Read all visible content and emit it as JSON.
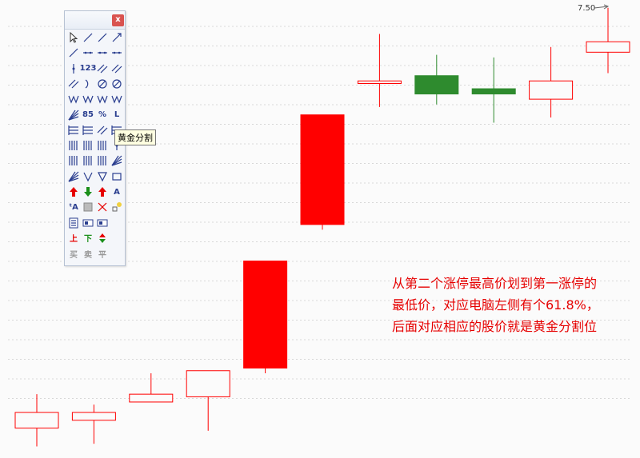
{
  "palette": {
    "close_label": "x",
    "tooltip": "黄金分割",
    "tools": [
      {
        "name": "select-arrow-icon",
        "glyph": "arrow"
      },
      {
        "name": "line-segment-icon",
        "glyph": "line"
      },
      {
        "name": "straight-line-icon",
        "glyph": "line"
      },
      {
        "name": "ray-icon",
        "glyph": "ray"
      },
      {
        "name": "arrow-line-icon",
        "glyph": "line"
      },
      {
        "name": "horizontal-segment-icon",
        "glyph": "hline"
      },
      {
        "name": "horizontal-ray-icon",
        "glyph": "hline"
      },
      {
        "name": "horizontal-line-icon",
        "glyph": "hline"
      },
      {
        "name": "vertical-line-icon",
        "glyph": "vline"
      },
      {
        "name": "price-label-icon",
        "glyph": "text",
        "text": "123"
      },
      {
        "name": "parallel-lines-icon",
        "glyph": "parallel"
      },
      {
        "name": "parallel-channel-icon",
        "glyph": "parallel"
      },
      {
        "name": "regression-channel-icon",
        "glyph": "parallel"
      },
      {
        "name": "arc-icon",
        "glyph": "arc"
      },
      {
        "name": "circle-icon",
        "glyph": "circle"
      },
      {
        "name": "gann-circle-icon",
        "glyph": "circle"
      },
      {
        "name": "wave-w-icon",
        "glyph": "zigzag"
      },
      {
        "name": "wave-m-icon",
        "glyph": "zigzag"
      },
      {
        "name": "elliott-wave-icon",
        "glyph": "zigzag"
      },
      {
        "name": "zigzag-icon",
        "glyph": "zigzag"
      },
      {
        "name": "fibonacci-fan-icon",
        "glyph": "fan"
      },
      {
        "name": "speed-lines-icon",
        "glyph": "text",
        "text": "85"
      },
      {
        "name": "percentage-lines-icon",
        "glyph": "text",
        "text": "%"
      },
      {
        "name": "quartile-lines-icon",
        "glyph": "text",
        "text": "L"
      },
      {
        "name": "gann-lines-icon",
        "glyph": "hbars"
      },
      {
        "name": "price-channel-icon",
        "glyph": "hbars"
      },
      {
        "name": "cycle-lines-icon",
        "glyph": "parallel"
      },
      {
        "name": "golden-ratio-icon",
        "glyph": "hbars"
      },
      {
        "name": "time-zone-icon",
        "glyph": "vbars"
      },
      {
        "name": "fibonacci-time-icon",
        "glyph": "vbars"
      },
      {
        "name": "cycle-time-icon",
        "glyph": "vbars"
      },
      {
        "name": "timeline-icon",
        "glyph": "vline"
      },
      {
        "name": "time-cycle-icon",
        "glyph": "vbars"
      },
      {
        "name": "time-bars-icon",
        "glyph": "vbars"
      },
      {
        "name": "period-lines-icon",
        "glyph": "vbars"
      },
      {
        "name": "pitchfork-icon",
        "glyph": "fan"
      },
      {
        "name": "gann-fan-icon",
        "glyph": "fan"
      },
      {
        "name": "down-arrow-line-icon",
        "glyph": "vee"
      },
      {
        "name": "triangle-icon",
        "glyph": "triangle"
      },
      {
        "name": "rectangle-icon",
        "glyph": "rect"
      },
      {
        "name": "up-arrow-icon",
        "glyph": "up-red"
      },
      {
        "name": "down-arrow-icon",
        "glyph": "down-green"
      },
      {
        "name": "up-arrow-line-icon",
        "glyph": "up-red"
      },
      {
        "name": "text-icon",
        "glyph": "text",
        "text": "A"
      },
      {
        "name": "text-box-icon",
        "glyph": "text",
        "text": "ᵗA"
      },
      {
        "name": "block-icon",
        "glyph": "grid"
      },
      {
        "name": "delete-icon",
        "glyph": "cross"
      },
      {
        "name": "color-icon",
        "glyph": "dots"
      },
      {
        "name": "note-icon",
        "glyph": "note"
      },
      {
        "name": "frame-icon",
        "glyph": "frame"
      },
      {
        "name": "panel-icon",
        "glyph": "frame"
      },
      {
        "name": "blank-slot-icon",
        "glyph": "none"
      },
      {
        "name": "limit-up-icon",
        "glyph": "text",
        "text": "上",
        "color": "#e60000"
      },
      {
        "name": "limit-down-icon",
        "glyph": "text",
        "text": "下",
        "color": "#1a8f1a"
      },
      {
        "name": "flat-icon",
        "glyph": "updown"
      },
      {
        "name": "blank-slot-2-icon",
        "glyph": "none"
      },
      {
        "name": "buy-icon",
        "glyph": "text",
        "text": "买",
        "color": "#999999"
      },
      {
        "name": "sell-icon",
        "glyph": "text",
        "text": "卖",
        "color": "#999999"
      },
      {
        "name": "hold-icon",
        "glyph": "text",
        "text": "平",
        "color": "#999999"
      }
    ]
  },
  "price_marker": "7.50",
  "annotation": {
    "lines": [
      "从第二个涨停最高价划到第一涨停的",
      "最低价，对应电脑左侧有个61.8%，",
      "后面对应相应的股价就是黄金分割位"
    ]
  },
  "chart_data": {
    "type": "candlestick",
    "candles": [
      {
        "open": 6.14,
        "close": 6.2,
        "high": 6.27,
        "low": 6.07,
        "color": "up-hollow"
      },
      {
        "open": 6.17,
        "close": 6.2,
        "high": 6.23,
        "low": 6.08,
        "color": "up-hollow"
      },
      {
        "open": 6.24,
        "close": 6.27,
        "high": 6.35,
        "low": 6.24,
        "color": "up-hollow"
      },
      {
        "open": 6.26,
        "close": 6.36,
        "high": 6.36,
        "low": 6.13,
        "color": "up-hollow"
      },
      {
        "open": 6.37,
        "close": 6.78,
        "high": 6.78,
        "low": 6.35,
        "color": "up-filled"
      },
      {
        "open": 6.92,
        "close": 7.34,
        "high": 7.34,
        "low": 6.9,
        "color": "up-filled"
      },
      {
        "open": 7.46,
        "close": 7.47,
        "high": 7.65,
        "low": 7.37,
        "color": "up-hollow"
      },
      {
        "open": 7.49,
        "close": 7.42,
        "high": 7.57,
        "low": 7.38,
        "color": "down-filled"
      },
      {
        "open": 7.44,
        "close": 7.42,
        "high": 7.56,
        "low": 7.31,
        "color": "down-filled"
      },
      {
        "open": 7.4,
        "close": 7.47,
        "high": 7.6,
        "low": 7.33,
        "color": "up-hollow"
      },
      {
        "open": 7.58,
        "close": 7.62,
        "high": 7.75,
        "low": 7.5,
        "color": "up-hollow"
      }
    ],
    "colors": {
      "up": "#ff0000",
      "down": "#2e8b2e"
    },
    "grid": "horizontal-dashed"
  }
}
